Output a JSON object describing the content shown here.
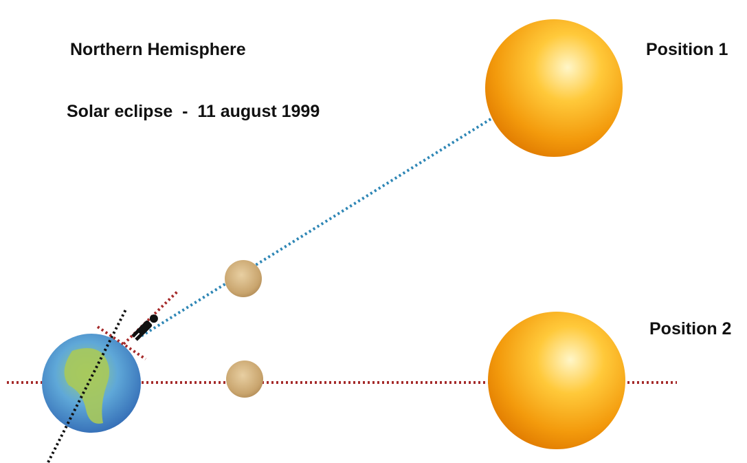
{
  "header": {
    "title": "Northern Hemisphere",
    "subtitle": "Solar eclipse  -  11 august 1999"
  },
  "labels": {
    "position_1": "Position 1",
    "position_2": "Position 2"
  }
}
